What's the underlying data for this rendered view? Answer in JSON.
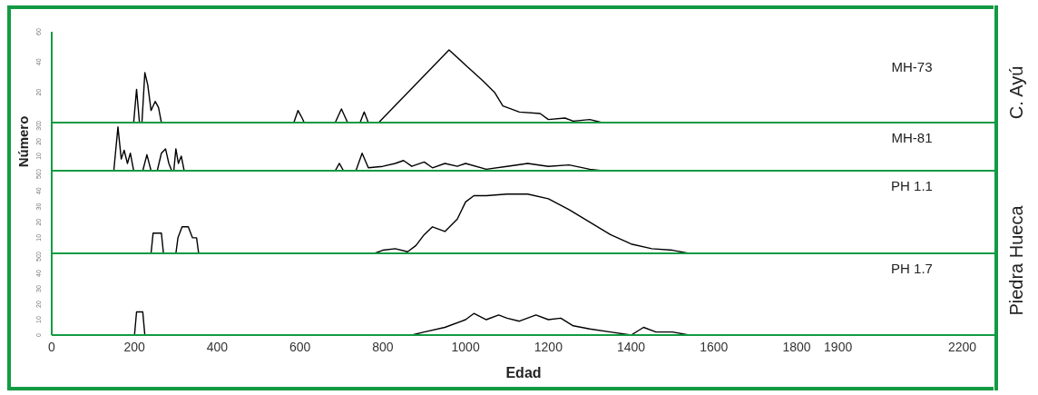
{
  "chart_data": [
    {
      "type": "line",
      "annotations": [
        "MH-73",
        "C. Ayú"
      ],
      "xlim": [
        0,
        2280
      ],
      "ylim": [
        0,
        60
      ],
      "yticks": [
        0,
        20,
        40,
        60
      ],
      "tick_labels": "y",
      "grid": false,
      "color": "#000000",
      "x": [
        198,
        205,
        212,
        218,
        225,
        232,
        240,
        250,
        258,
        265,
        585,
        595,
        605,
        610,
        685,
        700,
        715,
        745,
        755,
        765,
        790,
        960,
        1000,
        1040,
        1070,
        1090,
        1130,
        1180,
        1200,
        1240,
        1260,
        1300,
        1330
      ],
      "values": [
        0,
        22,
        0,
        0,
        33,
        25,
        8,
        14,
        10,
        0,
        0,
        8,
        3,
        0,
        0,
        9,
        0,
        0,
        7,
        0,
        0,
        48,
        38,
        28,
        20,
        11,
        7,
        6,
        2,
        3,
        1,
        2,
        0
      ]
    },
    {
      "type": "line",
      "ylabel": "Número",
      "xlim": [
        0,
        2280
      ],
      "ylim": [
        0,
        33
      ],
      "yticks": [
        0,
        10,
        20,
        30
      ],
      "tick_labels": "y",
      "grid": false,
      "color": "#000000",
      "annotations": [
        "MH-81"
      ],
      "x": [
        150,
        160,
        168,
        175,
        183,
        190,
        198,
        220,
        230,
        240,
        255,
        265,
        275,
        283,
        290,
        295,
        300,
        306,
        313,
        320,
        685,
        695,
        705,
        735,
        750,
        765,
        800,
        830,
        850,
        870,
        900,
        920,
        950,
        980,
        1000,
        1050,
        1100,
        1150,
        1200,
        1250,
        1300,
        1330
      ],
      "values": [
        0,
        30,
        8,
        14,
        5,
        12,
        0,
        0,
        11,
        0,
        0,
        12,
        15,
        5,
        0,
        0,
        15,
        5,
        10,
        0,
        0,
        5,
        0,
        0,
        12,
        2,
        3,
        5,
        7,
        3,
        6,
        2,
        5,
        3,
        5,
        1,
        3,
        5,
        3,
        4,
        1,
        0
      ]
    },
    {
      "type": "line",
      "annotations": [
        "PH 1.1",
        "Piedra Hueca"
      ],
      "xlim": [
        0,
        2280
      ],
      "ylim": [
        0,
        53
      ],
      "yticks": [
        0,
        10,
        20,
        30,
        40,
        50
      ],
      "tick_labels": "y",
      "grid": false,
      "color": "#000000",
      "x": [
        60,
        240,
        245,
        265,
        270,
        300,
        305,
        315,
        330,
        340,
        350,
        355,
        780,
        800,
        830,
        860,
        880,
        900,
        920,
        950,
        980,
        1000,
        1020,
        1050,
        1100,
        1150,
        1200,
        1250,
        1300,
        1350,
        1400,
        1450,
        1500,
        1540
      ],
      "values": [
        0,
        0,
        13,
        13,
        0,
        0,
        10,
        17,
        17,
        10,
        10,
        0,
        0,
        2,
        3,
        1,
        5,
        12,
        17,
        14,
        22,
        33,
        37,
        37,
        38,
        38,
        35,
        28,
        20,
        12,
        6,
        3,
        2,
        0
      ]
    },
    {
      "type": "line",
      "annotations": [
        "PH 1.7"
      ],
      "xlabel": "Edad",
      "xlim": [
        0,
        2280
      ],
      "ylim": [
        0,
        53
      ],
      "yticks": [
        0,
        10,
        20,
        30,
        40,
        50
      ],
      "xticks": [
        0,
        200,
        400,
        600,
        800,
        1000,
        1200,
        1400,
        1600,
        1800,
        1900,
        2200
      ],
      "grid": false,
      "color": "#000000",
      "x": [
        200,
        205,
        220,
        225,
        870,
        900,
        950,
        1000,
        1020,
        1050,
        1080,
        1100,
        1130,
        1170,
        1200,
        1230,
        1260,
        1300,
        1350,
        1400,
        1430,
        1460,
        1500,
        1540,
        1600
      ],
      "values": [
        0,
        15,
        15,
        0,
        0,
        2,
        5,
        10,
        14,
        10,
        13,
        11,
        9,
        13,
        10,
        11,
        6,
        4,
        2,
        0,
        5,
        2,
        2,
        0,
        0
      ]
    }
  ]
}
